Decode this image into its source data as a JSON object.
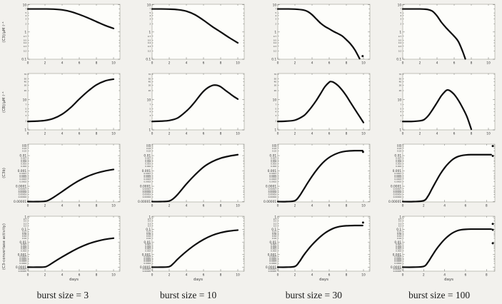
{
  "figure": {
    "background": "#f2f1ed",
    "plot_background": "#fdfdfa",
    "frame_color": "#a8a8a0",
    "curve_color": "#0d0d0d",
    "text_color": "#3a3a3a"
  },
  "chart_data": {
    "type": "line",
    "layout": "4x4 grid; columns are burst sizes, rows are model variables; y axes log scale, x axis days 0-10",
    "xlabel": "days",
    "columns": [
      "burst size = 3",
      "burst size = 10",
      "burst size = 30",
      "burst size = 100"
    ],
    "rows": [
      {
        "ylabel": "(C3)/μM l⁻¹",
        "ylim": [
          0.1,
          10.4
        ],
        "yticks_major": [
          [
            10,
            "10"
          ],
          [
            1,
            "1"
          ],
          [
            0.1,
            "0.1"
          ]
        ],
        "yticks_minor": [
          [
            7,
            "7"
          ],
          [
            5,
            "5"
          ],
          [
            4,
            "4"
          ],
          [
            3,
            "3"
          ],
          [
            2,
            "2"
          ],
          [
            0.7,
            "0.7"
          ],
          [
            0.5,
            "0.5"
          ],
          [
            0.4,
            "0.4"
          ],
          [
            0.3,
            "0.3"
          ],
          [
            0.2,
            "0.2"
          ]
        ]
      },
      {
        "ylabel": "(CB)/μM l⁻¹",
        "ylim": [
          1,
          74
        ],
        "yticks_major": [
          [
            10,
            "10"
          ],
          [
            1,
            "1"
          ]
        ],
        "yticks_minor": [
          [
            70,
            "70"
          ],
          [
            50,
            "50"
          ],
          [
            40,
            "40"
          ],
          [
            30,
            "30"
          ],
          [
            20,
            "20"
          ],
          [
            7,
            "7"
          ],
          [
            5,
            "5"
          ],
          [
            4,
            "4"
          ],
          [
            3,
            "3"
          ],
          [
            2,
            "2"
          ]
        ]
      },
      {
        "ylabel": "(C3b)",
        "ylim": [
          9.5e-06,
          0.056
        ],
        "yticks_major": [
          [
            0.01,
            "0.01"
          ],
          [
            0.001,
            "0.001"
          ],
          [
            0.0001,
            "0.0001"
          ],
          [
            1e-05,
            "0.00001"
          ]
        ],
        "yticks_minor": [
          [
            0.05,
            "0.05"
          ],
          [
            0.04,
            "0.04"
          ],
          [
            0.03,
            "0.03"
          ],
          [
            0.02,
            "0.02"
          ],
          [
            0.007,
            "0.007"
          ],
          [
            0.005,
            "0.005"
          ],
          [
            0.004,
            "0.004"
          ],
          [
            0.003,
            "0.003"
          ],
          [
            0.002,
            "0.002"
          ],
          [
            0.0007,
            "0.0007"
          ],
          [
            0.0005,
            "0.0005"
          ],
          [
            0.0004,
            "0.0004"
          ],
          [
            0.0003,
            "0.0003"
          ],
          [
            0.0002,
            "0.0002"
          ],
          [
            7e-05,
            "0.00007"
          ],
          [
            5e-05,
            "0.00005"
          ],
          [
            4e-05,
            "0.00004"
          ],
          [
            3e-05,
            "0.00003"
          ],
          [
            2e-05,
            "0.00002"
          ]
        ]
      },
      {
        "ylabel": "(C3-convertase activity)",
        "ylim": [
          4.8e-05,
          1.15
        ],
        "yticks_major": [
          [
            1,
            "1"
          ],
          [
            0.1,
            "0.1"
          ],
          [
            0.01,
            "0.01"
          ],
          [
            0.001,
            "0.001"
          ],
          [
            0.0001,
            "0.0001"
          ]
        ],
        "yticks_minor": [
          [
            0.7,
            "0.7"
          ],
          [
            0.5,
            "0.5"
          ],
          [
            0.3,
            "0.3"
          ],
          [
            0.2,
            "0.2"
          ],
          [
            0.07,
            "0.07"
          ],
          [
            0.05,
            "0.05"
          ],
          [
            0.04,
            "0.04"
          ],
          [
            0.03,
            "0.03"
          ],
          [
            0.02,
            "0.02"
          ],
          [
            0.007,
            "0.007"
          ],
          [
            0.005,
            "0.005"
          ],
          [
            0.004,
            "0.004"
          ],
          [
            0.003,
            "0.003"
          ],
          [
            0.002,
            "0.002"
          ],
          [
            0.0007,
            "0.0007"
          ],
          [
            0.0005,
            "0.0005"
          ],
          [
            0.0004,
            "0.0004"
          ],
          [
            0.0003,
            "0.0003"
          ],
          [
            0.0002,
            "0.0002"
          ],
          [
            7e-05,
            "0.00007"
          ],
          [
            5e-05,
            "0.00005"
          ]
        ]
      }
    ],
    "plots": [
      {
        "row": 0,
        "col": 0,
        "xlim": [
          0,
          10.75
        ],
        "xticks": [
          0,
          2,
          4,
          6,
          8,
          10
        ],
        "x": [
          0,
          1,
          2,
          3,
          4,
          5,
          6,
          7,
          8,
          9,
          10
        ],
        "y": [
          7,
          7,
          7,
          6.9,
          6.5,
          5.6,
          4.4,
          3.3,
          2.4,
          1.75,
          1.35
        ],
        "markers": []
      },
      {
        "row": 0,
        "col": 1,
        "xlim": [
          0,
          10.75
        ],
        "xticks": [
          0,
          2,
          4,
          6,
          8,
          10
        ],
        "x": [
          0,
          1,
          2,
          3,
          4,
          5,
          6,
          7,
          8,
          9,
          10
        ],
        "y": [
          7,
          7,
          6.9,
          6.6,
          5.8,
          4.3,
          2.7,
          1.6,
          1.0,
          0.62,
          0.4
        ],
        "markers": []
      },
      {
        "row": 0,
        "col": 2,
        "xlim": [
          0,
          10.75
        ],
        "xticks": [
          0,
          2,
          4,
          6,
          8,
          10
        ],
        "x": [
          0,
          1,
          2,
          3,
          3.5,
          4,
          4.5,
          5,
          5.5,
          6,
          6.5,
          7,
          7.5,
          8,
          8.5,
          9,
          9.55
        ],
        "y": [
          7,
          7,
          6.9,
          6.4,
          5.6,
          4.3,
          3.0,
          2.1,
          1.6,
          1.3,
          1.05,
          0.88,
          0.72,
          0.52,
          0.36,
          0.22,
          0.105
        ],
        "markers": [
          [
            9.9,
            0.13
          ]
        ]
      },
      {
        "row": 0,
        "col": 3,
        "xlim": [
          0,
          10.75
        ],
        "xticks": [
          0,
          2,
          4,
          6,
          8,
          10
        ],
        "x": [
          0,
          1,
          2,
          2.5,
          3,
          3.5,
          4,
          4.5,
          5,
          5.5,
          6,
          6.5,
          7,
          7.3
        ],
        "y": [
          7,
          7,
          7,
          6.9,
          6.6,
          5.7,
          3.9,
          2.3,
          1.5,
          1.02,
          0.7,
          0.44,
          0.19,
          0.103
        ],
        "markers": []
      },
      {
        "row": 1,
        "col": 0,
        "xlim": [
          0,
          10.75
        ],
        "xticks": [
          0,
          2,
          4,
          6,
          8,
          10
        ],
        "x": [
          0,
          1,
          2,
          3,
          4,
          5,
          6,
          7,
          8,
          9,
          10
        ],
        "y": [
          1.9,
          1.95,
          2.05,
          2.4,
          3.3,
          5.5,
          10.5,
          19,
          31,
          42,
          48
        ],
        "markers": []
      },
      {
        "row": 1,
        "col": 1,
        "xlim": [
          0,
          10.75
        ],
        "xticks": [
          0,
          2,
          4,
          6,
          8,
          10
        ],
        "x": [
          0,
          1,
          2,
          3,
          4,
          4.5,
          5,
          5.5,
          6,
          6.5,
          7,
          7.3,
          7.6,
          8,
          8.5,
          9,
          9.5,
          10
        ],
        "y": [
          1.9,
          1.95,
          2.05,
          2.5,
          4.2,
          5.8,
          8.5,
          13,
          19,
          25,
          29.5,
          30.5,
          30,
          27,
          21,
          16.5,
          13,
          10.5
        ],
        "markers": []
      },
      {
        "row": 1,
        "col": 2,
        "xlim": [
          0,
          10.75
        ],
        "xticks": [
          0,
          2,
          4,
          6,
          8,
          10
        ],
        "x": [
          0,
          1,
          2,
          3,
          3.5,
          4,
          4.5,
          5,
          5.5,
          6,
          6.2,
          6.5,
          7,
          7.5,
          8,
          8.5,
          9,
          9.5,
          10
        ],
        "y": [
          1.9,
          1.95,
          2.1,
          2.9,
          4,
          6,
          9.5,
          16,
          27,
          38,
          40,
          38,
          30,
          21,
          13.5,
          8,
          4.8,
          2.9,
          1.75
        ],
        "markers": []
      },
      {
        "row": 1,
        "col": 3,
        "xlim": [
          0,
          10.75
        ],
        "xticks": [
          0,
          2,
          4,
          6,
          8,
          10
        ],
        "x": [
          0,
          1,
          2,
          2.5,
          3,
          3.5,
          4,
          4.5,
          5,
          5.2,
          5.5,
          6,
          6.5,
          7,
          7.5,
          8
        ],
        "y": [
          1.9,
          1.9,
          2.0,
          2.2,
          3,
          4.8,
          8,
          13.5,
          19.5,
          21,
          20,
          15,
          9.5,
          5.3,
          2.7,
          1.05
        ],
        "markers": []
      },
      {
        "row": 2,
        "col": 0,
        "xlim": [
          0,
          10.75
        ],
        "xticks": [
          0,
          2,
          4,
          6,
          8,
          10
        ],
        "x": [
          0,
          1,
          2,
          2.5,
          3,
          4,
          5,
          6,
          7,
          8,
          9,
          10
        ],
        "y": [
          1e-05,
          1e-05,
          1.05e-05,
          1.3e-05,
          1.9e-05,
          4.5e-05,
          0.00011,
          0.00024,
          0.00045,
          0.00072,
          0.001,
          0.00125
        ],
        "markers": []
      },
      {
        "row": 2,
        "col": 1,
        "xlim": [
          0,
          10.75
        ],
        "xticks": [
          0,
          2,
          4,
          6,
          8,
          10
        ],
        "x": [
          0,
          1,
          2,
          2.5,
          3,
          4,
          5,
          6,
          7,
          8,
          9,
          10
        ],
        "y": [
          1e-05,
          1e-05,
          1.1e-05,
          1.6e-05,
          3e-05,
          0.00014,
          0.00055,
          0.0018,
          0.004,
          0.0068,
          0.0093,
          0.0115
        ],
        "markers": []
      },
      {
        "row": 2,
        "col": 2,
        "xlim": [
          0,
          10.75
        ],
        "xticks": [
          0,
          2,
          4,
          6,
          8,
          10
        ],
        "x": [
          0,
          1,
          2,
          2.5,
          3,
          3.5,
          4,
          4.5,
          5,
          5.5,
          6,
          6.5,
          7,
          7.5,
          8,
          8.5,
          9,
          9.5,
          9.9
        ],
        "y": [
          1e-05,
          1e-05,
          1.15e-05,
          2.2e-05,
          6e-05,
          0.00017,
          0.00045,
          0.0011,
          0.0024,
          0.0046,
          0.0076,
          0.011,
          0.0145,
          0.0175,
          0.0195,
          0.0205,
          0.021,
          0.021,
          0.021
        ],
        "markers": [
          [
            9.95,
            0.0175
          ]
        ]
      },
      {
        "row": 2,
        "col": 3,
        "xlim": [
          0,
          8.8
        ],
        "xticks": [
          0,
          2,
          4,
          6,
          8
        ],
        "x": [
          0,
          1,
          2,
          2.4,
          2.8,
          3.2,
          3.6,
          4,
          4.4,
          4.8,
          5.2,
          5.6,
          6,
          6.5,
          7,
          7.5,
          8,
          8.45
        ],
        "y": [
          1e-05,
          1e-05,
          1.15e-05,
          2.2e-05,
          7e-05,
          0.00022,
          0.00065,
          0.0016,
          0.0033,
          0.0058,
          0.0083,
          0.01,
          0.011,
          0.0115,
          0.0115,
          0.0115,
          0.0115,
          0.0115
        ],
        "markers": [
          [
            8.6,
            0.042
          ],
          [
            8.6,
            0.0095
          ]
        ]
      },
      {
        "row": 3,
        "col": 0,
        "xlim": [
          0,
          10.75
        ],
        "xticks": [
          0,
          2,
          4,
          6,
          8,
          10
        ],
        "x": [
          0,
          1,
          2,
          2.5,
          3,
          4,
          5,
          6,
          7,
          8,
          9,
          10
        ],
        "y": [
          0.0001,
          0.0001,
          0.000105,
          0.00015,
          0.00025,
          0.00065,
          0.0016,
          0.0036,
          0.007,
          0.0115,
          0.0165,
          0.0205
        ],
        "markers": []
      },
      {
        "row": 3,
        "col": 1,
        "xlim": [
          0,
          10.75
        ],
        "xticks": [
          0,
          2,
          4,
          6,
          8,
          10
        ],
        "x": [
          0,
          1,
          2,
          2.5,
          3,
          4,
          5,
          6,
          7,
          8,
          9,
          10
        ],
        "y": [
          0.0001,
          0.0001,
          0.00011,
          0.0002,
          0.00045,
          0.0018,
          0.006,
          0.016,
          0.034,
          0.056,
          0.076,
          0.09
        ],
        "markers": []
      },
      {
        "row": 3,
        "col": 2,
        "xlim": [
          0,
          10.75
        ],
        "xticks": [
          0,
          2,
          4,
          6,
          8,
          10
        ],
        "x": [
          0,
          1,
          2,
          2.5,
          3,
          3.5,
          4,
          4.5,
          5,
          5.5,
          6,
          6.5,
          7,
          7.5,
          8,
          8.5,
          9,
          9.5,
          9.9
        ],
        "y": [
          0.0001,
          0.0001,
          0.000115,
          0.00026,
          0.00085,
          0.0024,
          0.006,
          0.0135,
          0.028,
          0.052,
          0.085,
          0.125,
          0.16,
          0.185,
          0.2,
          0.205,
          0.21,
          0.21,
          0.21
        ],
        "markers": [
          [
            9.95,
            0.36
          ]
        ]
      },
      {
        "row": 3,
        "col": 3,
        "xlim": [
          0,
          8.8
        ],
        "xticks": [
          0,
          2,
          4,
          6,
          8
        ],
        "x": [
          0,
          1,
          2,
          2.4,
          2.8,
          3.2,
          3.6,
          4,
          4.4,
          4.8,
          5.2,
          5.6,
          6,
          6.5,
          7,
          7.5,
          8,
          8.45
        ],
        "y": [
          0.0001,
          0.0001,
          0.000115,
          0.00024,
          0.0008,
          0.0026,
          0.007,
          0.0165,
          0.033,
          0.056,
          0.08,
          0.096,
          0.104,
          0.108,
          0.108,
          0.108,
          0.108,
          0.108
        ],
        "markers": [
          [
            8.6,
            0.28
          ],
          [
            8.6,
            0.095
          ],
          [
            8.6,
            0.008
          ]
        ]
      }
    ]
  }
}
